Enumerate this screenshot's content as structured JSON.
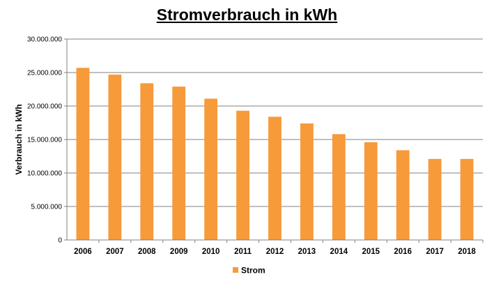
{
  "chart_data": {
    "type": "bar",
    "title": "Stromverbrauch in kWh",
    "xlabel": "",
    "ylabel": "Verbrauch in kWh",
    "ylim": [
      0,
      30000000
    ],
    "yticks": [
      "0",
      "5.000.000",
      "10.000.000",
      "15.000.000",
      "20.000.000",
      "25.000.000",
      "30.000.000"
    ],
    "categories": [
      "2006",
      "2007",
      "2008",
      "2009",
      "2010",
      "2011",
      "2012",
      "2013",
      "2014",
      "2015",
      "2016",
      "2017",
      "2018"
    ],
    "series": [
      {
        "name": "Strom",
        "color": "#F79A3A",
        "values": [
          25700000,
          24700000,
          23400000,
          22900000,
          21100000,
          19300000,
          18400000,
          17400000,
          15800000,
          14600000,
          13400000,
          12100000,
          12100000
        ]
      }
    ],
    "grid": true,
    "legend_position": "bottom"
  }
}
